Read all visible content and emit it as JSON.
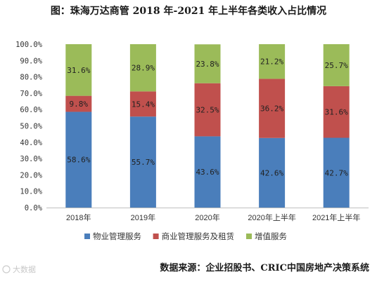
{
  "chart_data": {
    "type": "bar",
    "stacked": true,
    "title": "图：珠海万达商管 2018 年-2021 年上半年各类收入占比情况",
    "categories": [
      "2018年",
      "2019年",
      "2020年",
      "2020年上半年",
      "2021年上半年"
    ],
    "ylim": [
      0,
      100
    ],
    "yticks": [
      "0.0%",
      "10.0%",
      "20.0%",
      "30.0%",
      "40.0%",
      "50.0%",
      "60.0%",
      "70.0%",
      "80.0%",
      "90.0%",
      "100.0%"
    ],
    "series": [
      {
        "name": "物业管理服务",
        "color": "#4a7ebb",
        "values": [
          58.6,
          55.7,
          43.6,
          42.6,
          42.7
        ],
        "labels": [
          "58.6%",
          "55.7%",
          "43.6%",
          "42.6%",
          "42.7%"
        ]
      },
      {
        "name": "商业管理服务及租赁",
        "color": "#c0504d",
        "values": [
          9.8,
          15.4,
          32.5,
          36.2,
          31.6
        ],
        "labels": [
          "9.8%",
          "15.4%",
          "32.5%",
          "36.2%",
          "31.6%"
        ]
      },
      {
        "name": "增值服务",
        "color": "#9bbb59",
        "values": [
          31.6,
          28.9,
          23.8,
          21.2,
          25.7
        ],
        "labels": [
          "31.6%",
          "28.9%",
          "23.8%",
          "21.2%",
          "25.7%"
        ]
      }
    ],
    "legend_position": "bottom",
    "grid": false
  },
  "source_text": "数据来源：企业招股书、CRIC中国房地产决策系统",
  "watermark_text": "大数据"
}
